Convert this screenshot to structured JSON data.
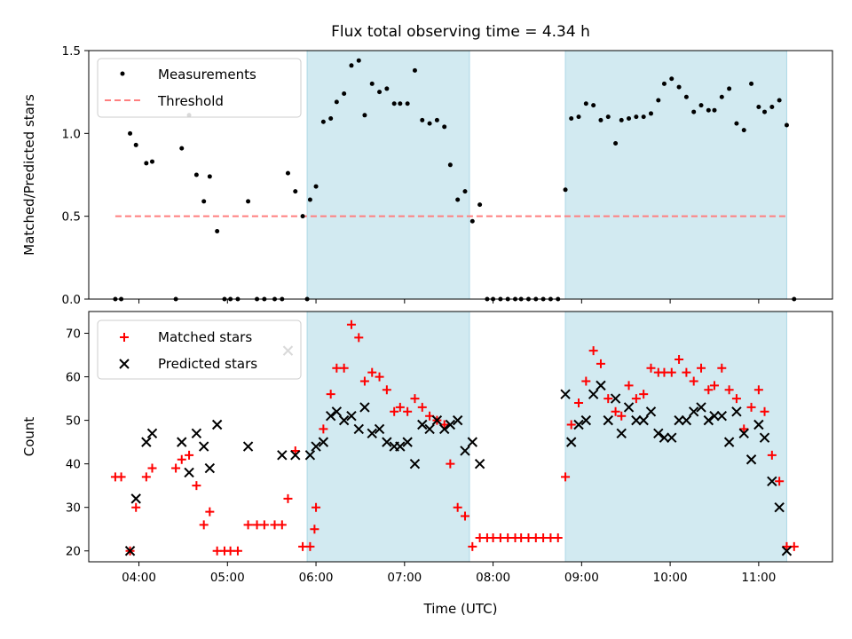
{
  "chart_data": {
    "type": "scatter",
    "title": "Flux total observing time = 4.34 h",
    "xlabel": "Time (UTC)",
    "x_ticks": [
      "04:00",
      "05:00",
      "06:00",
      "07:00",
      "08:00",
      "09:00",
      "10:00",
      "11:00"
    ],
    "x_range": [
      "03:26",
      "11:50"
    ],
    "shaded_intervals": [
      [
        "05:54",
        "07:44"
      ],
      [
        "08:49",
        "11:19"
      ]
    ],
    "colors": {
      "shade": "#add8e6",
      "measurements": "#000000",
      "threshold": "#ff7f7f",
      "matched": "#ff0000",
      "predicted": "#000000"
    },
    "panels": [
      {
        "ylabel": "Matched/Predicted stars",
        "ylim": [
          0,
          1.5
        ],
        "y_ticks": [
          "0.0",
          "0.5",
          "1.0",
          "1.5"
        ],
        "legend": {
          "position": "top-left",
          "entries": [
            "Measurements",
            "Threshold"
          ]
        },
        "threshold": {
          "name": "Threshold",
          "value": 0.5,
          "x_from": "03:44",
          "x_to": "11:19"
        },
        "measurements": {
          "name": "Measurements",
          "points": [
            [
              "03:44",
              0
            ],
            [
              "03:48",
              0
            ],
            [
              "03:54",
              1.0
            ],
            [
              "03:58",
              0.93
            ],
            [
              "04:05",
              0.82
            ],
            [
              "04:09",
              0.83
            ],
            [
              "04:25",
              0
            ],
            [
              "04:29",
              0.91
            ],
            [
              "04:34",
              1.11
            ],
            [
              "04:39",
              0.75
            ],
            [
              "04:44",
              0.59
            ],
            [
              "04:48",
              0.74
            ],
            [
              "04:53",
              0.41
            ],
            [
              "04:58",
              0
            ],
            [
              "05:02",
              0
            ],
            [
              "05:07",
              0
            ],
            [
              "05:14",
              0.59
            ],
            [
              "05:20",
              0
            ],
            [
              "05:25",
              0
            ],
            [
              "05:32",
              0
            ],
            [
              "05:37",
              0
            ],
            [
              "05:41",
              0.76
            ],
            [
              "05:46",
              0.65
            ],
            [
              "05:51",
              0.5
            ],
            [
              "05:54",
              0
            ],
            [
              "05:56",
              0.6
            ],
            [
              "06:00",
              0.68
            ],
            [
              "06:05",
              1.07
            ],
            [
              "06:10",
              1.09
            ],
            [
              "06:14",
              1.19
            ],
            [
              "06:19",
              1.24
            ],
            [
              "06:24",
              1.41
            ],
            [
              "06:29",
              1.44
            ],
            [
              "06:33",
              1.11
            ],
            [
              "06:38",
              1.3
            ],
            [
              "06:43",
              1.25
            ],
            [
              "06:48",
              1.27
            ],
            [
              "06:53",
              1.18
            ],
            [
              "06:57",
              1.18
            ],
            [
              "07:02",
              1.18
            ],
            [
              "07:07",
              1.38
            ],
            [
              "07:12",
              1.08
            ],
            [
              "07:17",
              1.06
            ],
            [
              "07:22",
              1.08
            ],
            [
              "07:27",
              1.04
            ],
            [
              "07:31",
              0.81
            ],
            [
              "07:36",
              0.6
            ],
            [
              "07:41",
              0.65
            ],
            [
              "07:46",
              0.47
            ],
            [
              "07:51",
              0.57
            ],
            [
              "07:56",
              0
            ],
            [
              "08:00",
              0
            ],
            [
              "08:05",
              0
            ],
            [
              "08:10",
              0
            ],
            [
              "08:15",
              0
            ],
            [
              "08:19",
              0
            ],
            [
              "08:24",
              0
            ],
            [
              "08:29",
              0
            ],
            [
              "08:34",
              0
            ],
            [
              "08:39",
              0
            ],
            [
              "08:44",
              0
            ],
            [
              "08:49",
              0.66
            ],
            [
              "08:53",
              1.09
            ],
            [
              "08:58",
              1.1
            ],
            [
              "09:03",
              1.18
            ],
            [
              "09:08",
              1.17
            ],
            [
              "09:13",
              1.08
            ],
            [
              "09:18",
              1.1
            ],
            [
              "09:23",
              0.94
            ],
            [
              "09:27",
              1.08
            ],
            [
              "09:32",
              1.09
            ],
            [
              "09:37",
              1.1
            ],
            [
              "09:42",
              1.1
            ],
            [
              "09:47",
              1.12
            ],
            [
              "09:52",
              1.2
            ],
            [
              "09:56",
              1.3
            ],
            [
              "10:01",
              1.33
            ],
            [
              "10:06",
              1.28
            ],
            [
              "10:11",
              1.22
            ],
            [
              "10:16",
              1.13
            ],
            [
              "10:21",
              1.17
            ],
            [
              "10:26",
              1.14
            ],
            [
              "10:30",
              1.14
            ],
            [
              "10:35",
              1.22
            ],
            [
              "10:40",
              1.27
            ],
            [
              "10:45",
              1.06
            ],
            [
              "10:50",
              1.02
            ],
            [
              "10:55",
              1.3
            ],
            [
              "11:00",
              1.16
            ],
            [
              "11:04",
              1.13
            ],
            [
              "11:09",
              1.16
            ],
            [
              "11:14",
              1.2
            ],
            [
              "11:19",
              1.05
            ],
            [
              "11:24",
              0
            ]
          ]
        }
      },
      {
        "ylabel": "Count",
        "ylim": [
          17.5,
          75
        ],
        "y_ticks": [
          "20",
          "30",
          "40",
          "50",
          "60",
          "70"
        ],
        "legend": {
          "position": "top-left",
          "entries": [
            "Matched stars",
            "Predicted stars"
          ]
        },
        "matched": {
          "name": "Matched stars",
          "points": [
            [
              "03:44",
              37
            ],
            [
              "03:48",
              37
            ],
            [
              "03:54",
              20
            ],
            [
              "03:58",
              30
            ],
            [
              "04:05",
              37
            ],
            [
              "04:09",
              39
            ],
            [
              "04:25",
              39
            ],
            [
              "04:29",
              41
            ],
            [
              "04:34",
              42
            ],
            [
              "04:39",
              35
            ],
            [
              "04:44",
              26
            ],
            [
              "04:48",
              29
            ],
            [
              "04:53",
              20
            ],
            [
              "04:58",
              20
            ],
            [
              "05:02",
              20
            ],
            [
              "05:07",
              20
            ],
            [
              "05:14",
              26
            ],
            [
              "05:20",
              26
            ],
            [
              "05:25",
              26
            ],
            [
              "05:32",
              26
            ],
            [
              "05:37",
              26
            ],
            [
              "05:41",
              32
            ],
            [
              "05:46",
              43
            ],
            [
              "05:51",
              21
            ],
            [
              "05:56",
              21
            ],
            [
              "05:59",
              25
            ],
            [
              "06:00",
              30
            ],
            [
              "06:05",
              48
            ],
            [
              "06:10",
              56
            ],
            [
              "06:14",
              62
            ],
            [
              "06:19",
              62
            ],
            [
              "06:24",
              72
            ],
            [
              "06:29",
              69
            ],
            [
              "06:33",
              59
            ],
            [
              "06:38",
              61
            ],
            [
              "06:43",
              60
            ],
            [
              "06:48",
              57
            ],
            [
              "06:53",
              52
            ],
            [
              "06:57",
              53
            ],
            [
              "07:02",
              52
            ],
            [
              "07:07",
              55
            ],
            [
              "07:12",
              53
            ],
            [
              "07:17",
              51
            ],
            [
              "07:22",
              50
            ],
            [
              "07:27",
              49
            ],
            [
              "07:31",
              40
            ],
            [
              "07:36",
              30
            ],
            [
              "07:41",
              28
            ],
            [
              "07:46",
              21
            ],
            [
              "07:51",
              23
            ],
            [
              "07:56",
              23
            ],
            [
              "08:00",
              23
            ],
            [
              "08:05",
              23
            ],
            [
              "08:10",
              23
            ],
            [
              "08:15",
              23
            ],
            [
              "08:19",
              23
            ],
            [
              "08:24",
              23
            ],
            [
              "08:29",
              23
            ],
            [
              "08:34",
              23
            ],
            [
              "08:39",
              23
            ],
            [
              "08:44",
              23
            ],
            [
              "08:49",
              37
            ],
            [
              "08:53",
              49
            ],
            [
              "08:58",
              54
            ],
            [
              "09:03",
              59
            ],
            [
              "09:08",
              66
            ],
            [
              "09:13",
              63
            ],
            [
              "09:18",
              55
            ],
            [
              "09:23",
              52
            ],
            [
              "09:27",
              51
            ],
            [
              "09:32",
              58
            ],
            [
              "09:37",
              55
            ],
            [
              "09:42",
              56
            ],
            [
              "09:47",
              62
            ],
            [
              "09:52",
              61
            ],
            [
              "09:56",
              61
            ],
            [
              "10:01",
              61
            ],
            [
              "10:06",
              64
            ],
            [
              "10:11",
              61
            ],
            [
              "10:16",
              59
            ],
            [
              "10:21",
              62
            ],
            [
              "10:26",
              57
            ],
            [
              "10:30",
              58
            ],
            [
              "10:35",
              62
            ],
            [
              "10:40",
              57
            ],
            [
              "10:45",
              55
            ],
            [
              "10:50",
              48
            ],
            [
              "10:55",
              53
            ],
            [
              "11:00",
              57
            ],
            [
              "11:04",
              52
            ],
            [
              "11:09",
              42
            ],
            [
              "11:14",
              36
            ],
            [
              "11:19",
              21
            ],
            [
              "11:24",
              21
            ]
          ]
        },
        "predicted": {
          "name": "Predicted stars",
          "points": [
            [
              "03:54",
              20
            ],
            [
              "03:58",
              32
            ],
            [
              "04:05",
              45
            ],
            [
              "04:09",
              47
            ],
            [
              "04:29",
              45
            ],
            [
              "04:34",
              38
            ],
            [
              "04:39",
              47
            ],
            [
              "04:44",
              44
            ],
            [
              "04:48",
              39
            ],
            [
              "04:53",
              49
            ],
            [
              "05:14",
              44
            ],
            [
              "05:37",
              42
            ],
            [
              "05:41",
              66
            ],
            [
              "05:46",
              42
            ],
            [
              "05:56",
              42
            ],
            [
              "06:00",
              44
            ],
            [
              "06:05",
              45
            ],
            [
              "06:10",
              51
            ],
            [
              "06:14",
              52
            ],
            [
              "06:19",
              50
            ],
            [
              "06:24",
              51
            ],
            [
              "06:29",
              48
            ],
            [
              "06:33",
              53
            ],
            [
              "06:38",
              47
            ],
            [
              "06:43",
              48
            ],
            [
              "06:48",
              45
            ],
            [
              "06:53",
              44
            ],
            [
              "06:57",
              44
            ],
            [
              "07:02",
              45
            ],
            [
              "07:07",
              40
            ],
            [
              "07:12",
              49
            ],
            [
              "07:17",
              48
            ],
            [
              "07:22",
              50
            ],
            [
              "07:27",
              48
            ],
            [
              "07:31",
              49
            ],
            [
              "07:36",
              50
            ],
            [
              "07:41",
              43
            ],
            [
              "07:46",
              45
            ],
            [
              "07:51",
              40
            ],
            [
              "08:49",
              56
            ],
            [
              "08:53",
              45
            ],
            [
              "08:58",
              49
            ],
            [
              "09:03",
              50
            ],
            [
              "09:08",
              56
            ],
            [
              "09:13",
              58
            ],
            [
              "09:18",
              50
            ],
            [
              "09:23",
              55
            ],
            [
              "09:27",
              47
            ],
            [
              "09:32",
              53
            ],
            [
              "09:37",
              50
            ],
            [
              "09:42",
              50
            ],
            [
              "09:47",
              52
            ],
            [
              "09:52",
              47
            ],
            [
              "09:56",
              46
            ],
            [
              "10:01",
              46
            ],
            [
              "10:06",
              50
            ],
            [
              "10:11",
              50
            ],
            [
              "10:16",
              52
            ],
            [
              "10:21",
              53
            ],
            [
              "10:26",
              50
            ],
            [
              "10:30",
              51
            ],
            [
              "10:35",
              51
            ],
            [
              "10:40",
              45
            ],
            [
              "10:45",
              52
            ],
            [
              "10:50",
              47
            ],
            [
              "10:55",
              41
            ],
            [
              "11:00",
              49
            ],
            [
              "11:04",
              46
            ],
            [
              "11:09",
              36
            ],
            [
              "11:14",
              30
            ],
            [
              "11:19",
              20
            ]
          ]
        }
      }
    ]
  }
}
